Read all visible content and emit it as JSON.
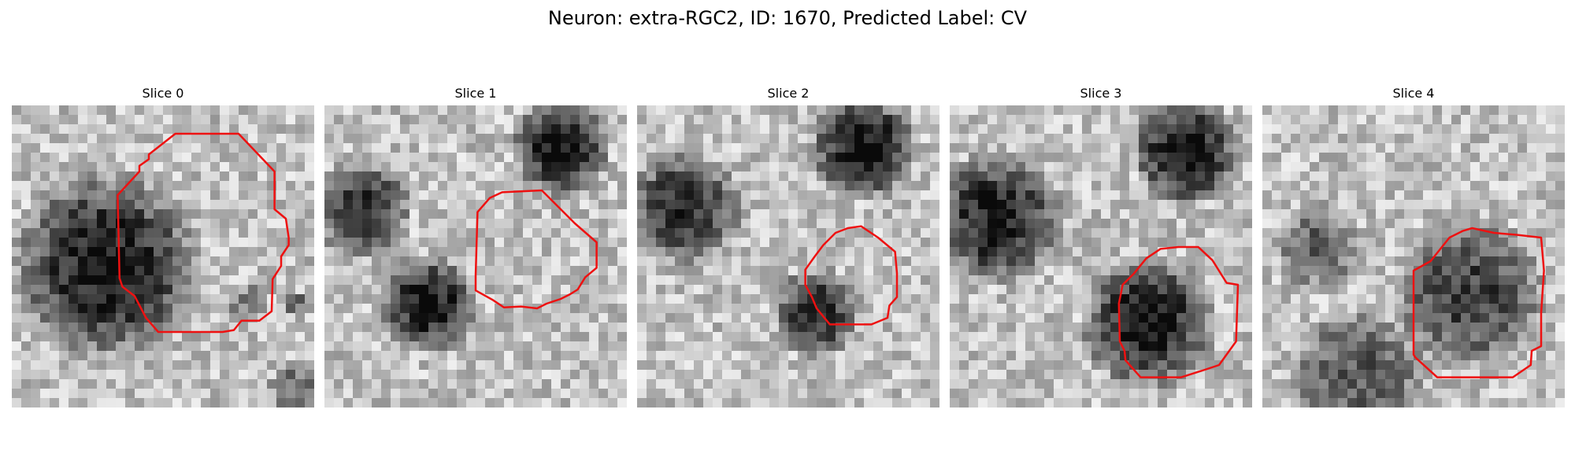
{
  "figure": {
    "title": "Neuron: extra-RGC2, ID: 1670, Predicted Label: CV"
  },
  "panels": [
    {
      "title": "Slice 0"
    },
    {
      "title": "Slice 1"
    },
    {
      "title": "Slice 2"
    },
    {
      "title": "Slice 3"
    },
    {
      "title": "Slice 4"
    }
  ],
  "style": {
    "contour_color": "#ee1111"
  }
}
